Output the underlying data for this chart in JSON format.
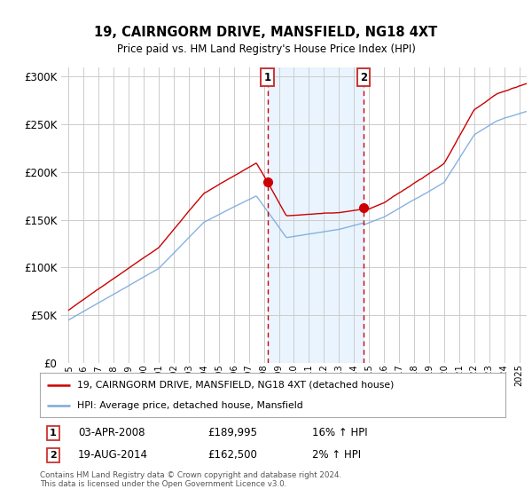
{
  "title": "19, CAIRNGORM DRIVE, MANSFIELD, NG18 4XT",
  "subtitle": "Price paid vs. HM Land Registry's House Price Index (HPI)",
  "footer": "Contains HM Land Registry data © Crown copyright and database right 2024.\nThis data is licensed under the Open Government Licence v3.0.",
  "legend_line1": "19, CAIRNGORM DRIVE, MANSFIELD, NG18 4XT (detached house)",
  "legend_line2": "HPI: Average price, detached house, Mansfield",
  "annotation1_label": "1",
  "annotation1_date": "03-APR-2008",
  "annotation1_price": "£189,995",
  "annotation1_hpi": "16% ↑ HPI",
  "annotation2_label": "2",
  "annotation2_date": "19-AUG-2014",
  "annotation2_price": "£162,500",
  "annotation2_hpi": "2% ↑ HPI",
  "red_color": "#cc0000",
  "blue_color": "#7aaadd",
  "shade_color": "#ddeeff",
  "vline_color": "#cc0000",
  "box_color": "#cc3333",
  "grid_color": "#cccccc",
  "bg_color": "#ffffff",
  "ylim": [
    0,
    310000
  ],
  "yticks": [
    0,
    50000,
    100000,
    150000,
    200000,
    250000,
    300000
  ],
  "xlim_start": 1994.5,
  "xlim_end": 2025.5,
  "vline1_x": 2008.25,
  "vline2_x": 2014.63,
  "shade_x1": 2008.25,
  "shade_x2": 2014.63,
  "sale1_y": 189995,
  "sale2_y": 162500,
  "marker_size": 7
}
